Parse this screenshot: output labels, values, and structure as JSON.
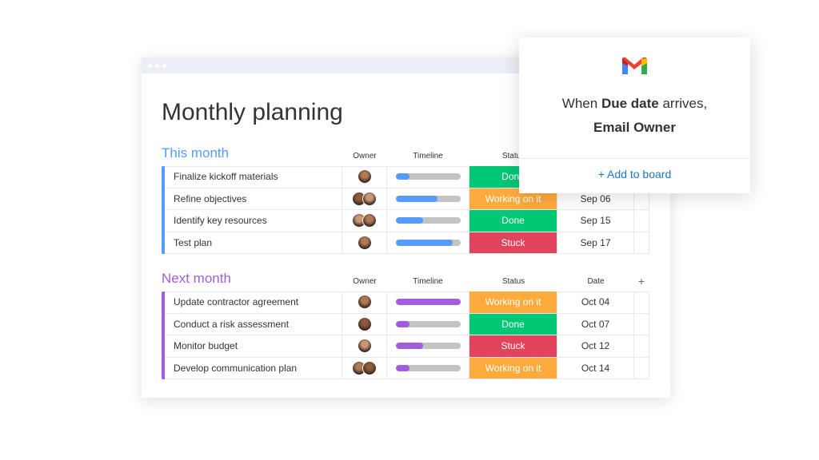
{
  "board": {
    "title": "Monthly planning",
    "groups": [
      {
        "name": "This month",
        "color": "#579bfc",
        "columns": {
          "owner": "Owner",
          "timeline": "Timeline",
          "status": "Status"
        },
        "rows": [
          {
            "name": "Finalize kickoff materials",
            "avatars": 1,
            "timeline": 0.22,
            "status": "Done",
            "status_color": "#00c875"
          },
          {
            "name": "Refine objectives",
            "avatars": 2,
            "timeline": 0.65,
            "status": "Working on it",
            "status_color": "#fdab3d",
            "date": "Sep 06"
          },
          {
            "name": "Identify key resources",
            "avatars": 2,
            "timeline": 0.43,
            "status": "Done",
            "status_color": "#00c875",
            "date": "Sep 15"
          },
          {
            "name": "Test plan",
            "avatars": 1,
            "timeline": 0.88,
            "status": "Stuck",
            "status_color": "#e2445c",
            "date": "Sep 17"
          }
        ]
      },
      {
        "name": "Next month",
        "color": "#a25ddc",
        "columns": {
          "owner": "Owner",
          "timeline": "Timeline",
          "status": "Status",
          "date": "Date",
          "add": "+"
        },
        "rows": [
          {
            "name": "Update contractor agreement",
            "avatars": 1,
            "timeline": 1.0,
            "status": "Working on it",
            "status_color": "#fdab3d",
            "date": "Oct 04"
          },
          {
            "name": "Conduct a risk assessment",
            "avatars": 1,
            "timeline": 0.22,
            "status": "Done",
            "status_color": "#00c875",
            "date": "Oct 07"
          },
          {
            "name": "Monitor budget",
            "avatars": 1,
            "timeline": 0.43,
            "status": "Stuck",
            "status_color": "#e2445c",
            "date": "Oct 12"
          },
          {
            "name": "Develop communication plan",
            "avatars": 2,
            "timeline": 0.22,
            "status": "Working on it",
            "status_color": "#fdab3d",
            "date": "Oct 14"
          }
        ]
      }
    ]
  },
  "popup": {
    "text_before": "When",
    "emphasis": "Due date",
    "text_after": "arrives,",
    "action": "Email Owner",
    "button": "+ Add to board"
  }
}
